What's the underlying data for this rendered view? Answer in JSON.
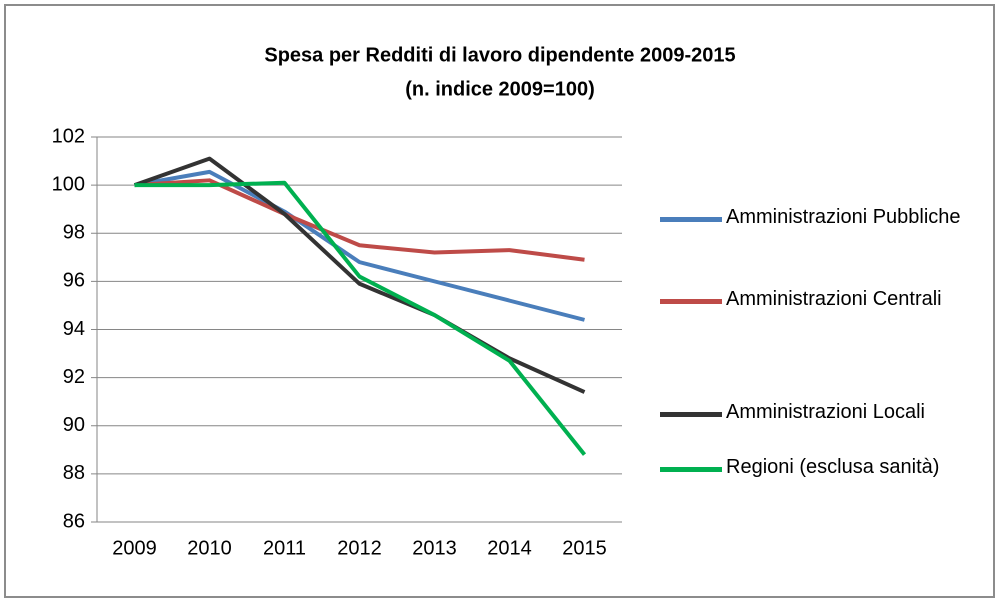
{
  "chart_data": {
    "type": "line",
    "title": "Spesa per Redditi di lavoro dipendente 2009-2015",
    "subtitle": "(n. indice 2009=100)",
    "categories": [
      "2009",
      "2010",
      "2011",
      "2012",
      "2013",
      "2014",
      "2015"
    ],
    "series": [
      {
        "name": "Amministrazioni Pubbliche",
        "color": "#4a7ebb",
        "values": [
          100,
          100.55,
          98.9,
          96.8,
          96.0,
          95.2,
          94.4
        ]
      },
      {
        "name": "Amministrazioni Centrali",
        "color": "#be4b48",
        "values": [
          100,
          100.2,
          98.8,
          97.5,
          97.2,
          97.3,
          96.9
        ]
      },
      {
        "name": "Amministrazioni Locali",
        "color": "#333333",
        "values": [
          100,
          101.1,
          98.8,
          95.9,
          94.6,
          92.8,
          91.4
        ]
      },
      {
        "name": "Regioni (esclusa sanità)",
        "color": "#00b050",
        "values": [
          100,
          100,
          100.1,
          96.2,
          94.6,
          92.7,
          88.8
        ]
      }
    ],
    "ylim": [
      86,
      102
    ],
    "yticks": [
      86,
      88,
      90,
      92,
      94,
      96,
      98,
      100,
      102
    ],
    "grid": true,
    "legend": "right"
  }
}
